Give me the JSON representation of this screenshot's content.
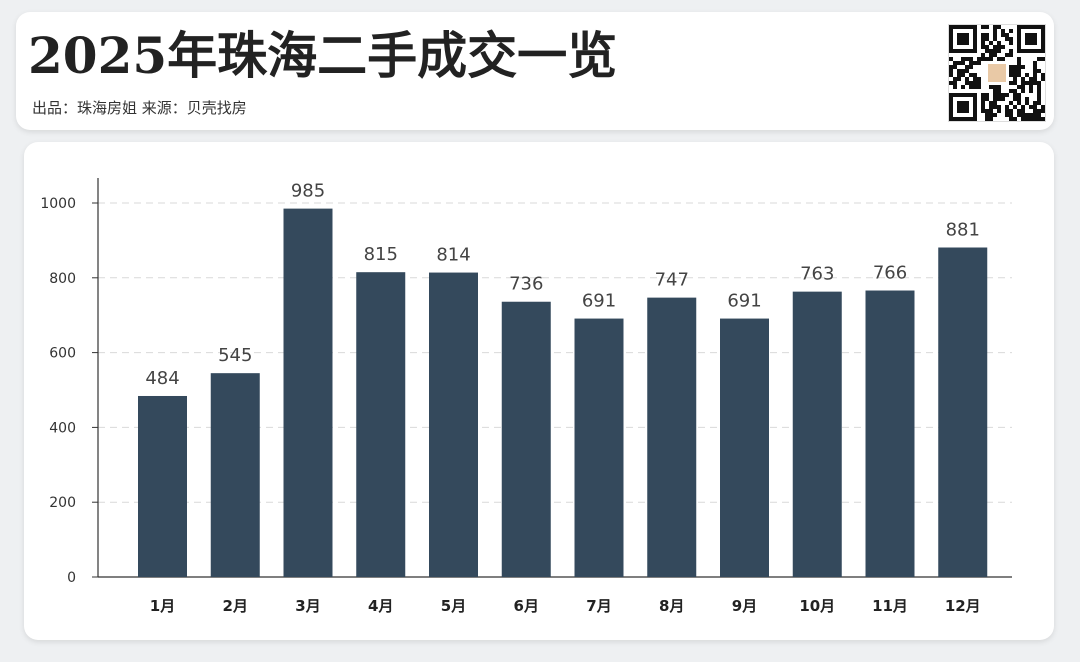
{
  "header": {
    "title": "2025年珠海二手成交一览",
    "subtitle": "出品：珠海房姐   来源：贝壳找房",
    "qr_code": "qr-code-icon"
  },
  "colors": {
    "bar": "#34495c",
    "grid": "#d9d9d9",
    "axis": "#333333"
  },
  "chart_data": {
    "type": "bar",
    "categories": [
      "1月",
      "2月",
      "3月",
      "4月",
      "5月",
      "6月",
      "7月",
      "8月",
      "9月",
      "10月",
      "11月",
      "12月"
    ],
    "values": [
      484,
      545,
      985,
      815,
      814,
      736,
      691,
      747,
      691,
      763,
      766,
      881
    ],
    "data_labels": [
      "484",
      "545",
      "985",
      "815",
      "814",
      "736",
      "691",
      "747",
      "691",
      "763",
      "766",
      "881"
    ],
    "y_ticks": [
      0,
      200,
      400,
      600,
      800,
      1000
    ],
    "ylim": [
      0,
      1000
    ],
    "grid": true,
    "legend": "none"
  }
}
